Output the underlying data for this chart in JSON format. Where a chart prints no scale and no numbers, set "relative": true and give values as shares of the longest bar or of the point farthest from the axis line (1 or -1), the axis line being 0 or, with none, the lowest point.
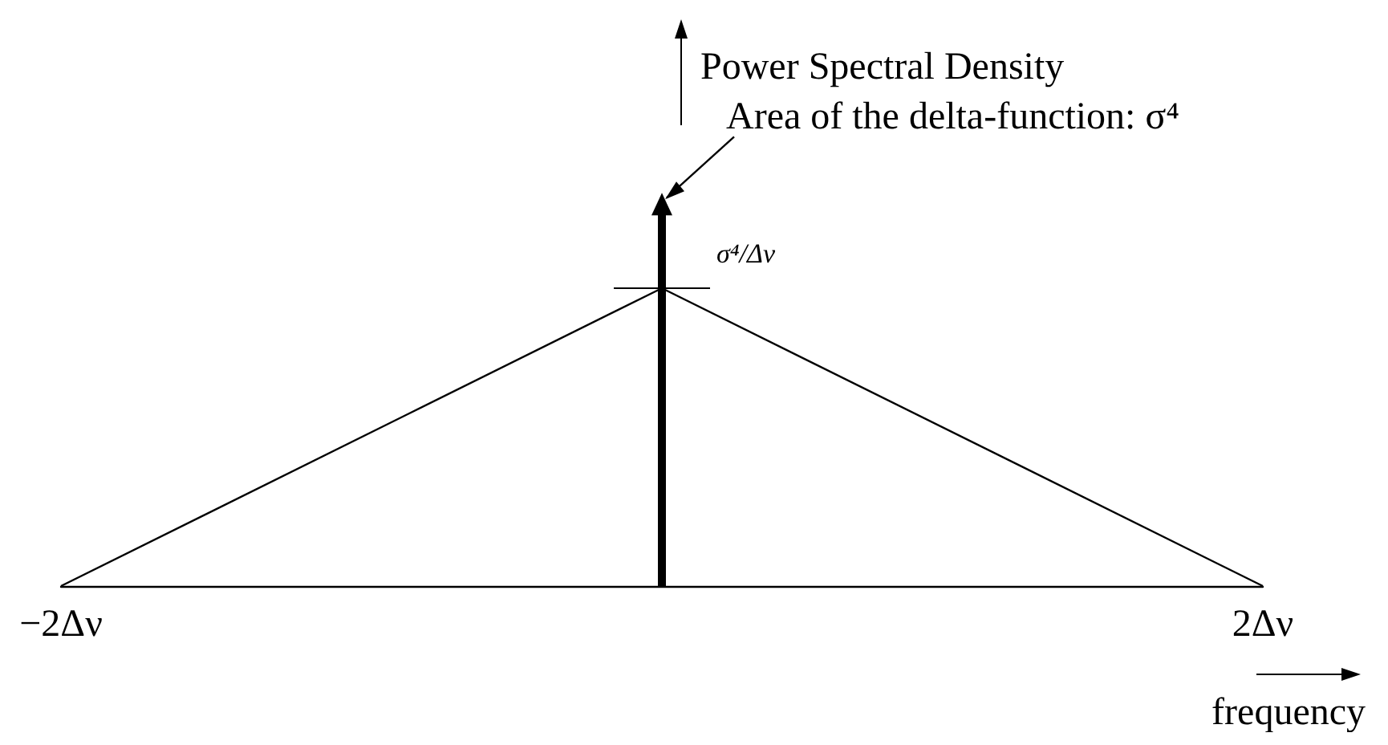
{
  "chart_data": {
    "type": "line",
    "ylabel": "Power Spectral Density",
    "xlabel": "frequency",
    "relative": true,
    "marker": "none",
    "x": [
      -2,
      0,
      2
    ],
    "xlim": [
      -2,
      2
    ],
    "xticks": [
      {
        "value": -2,
        "label": "−2Δν"
      },
      {
        "value": 2,
        "label": "2Δν"
      }
    ],
    "series": [
      {
        "color": "#000000",
        "values": [
          0,
          0.78,
          0
        ]
      },
      {
        "type": "line",
        "x": [
          0,
          0
        ],
        "values": [
          0,
          1
        ],
        "color": "#000000",
        "marker": "triangle"
      }
    ],
    "annotations": [
      {
        "text": "Area of the delta-function: σ⁴",
        "x": 0,
        "y": 1
      },
      {
        "text": "σ⁴/Δν",
        "x": 0,
        "y": 0.78
      }
    ]
  }
}
